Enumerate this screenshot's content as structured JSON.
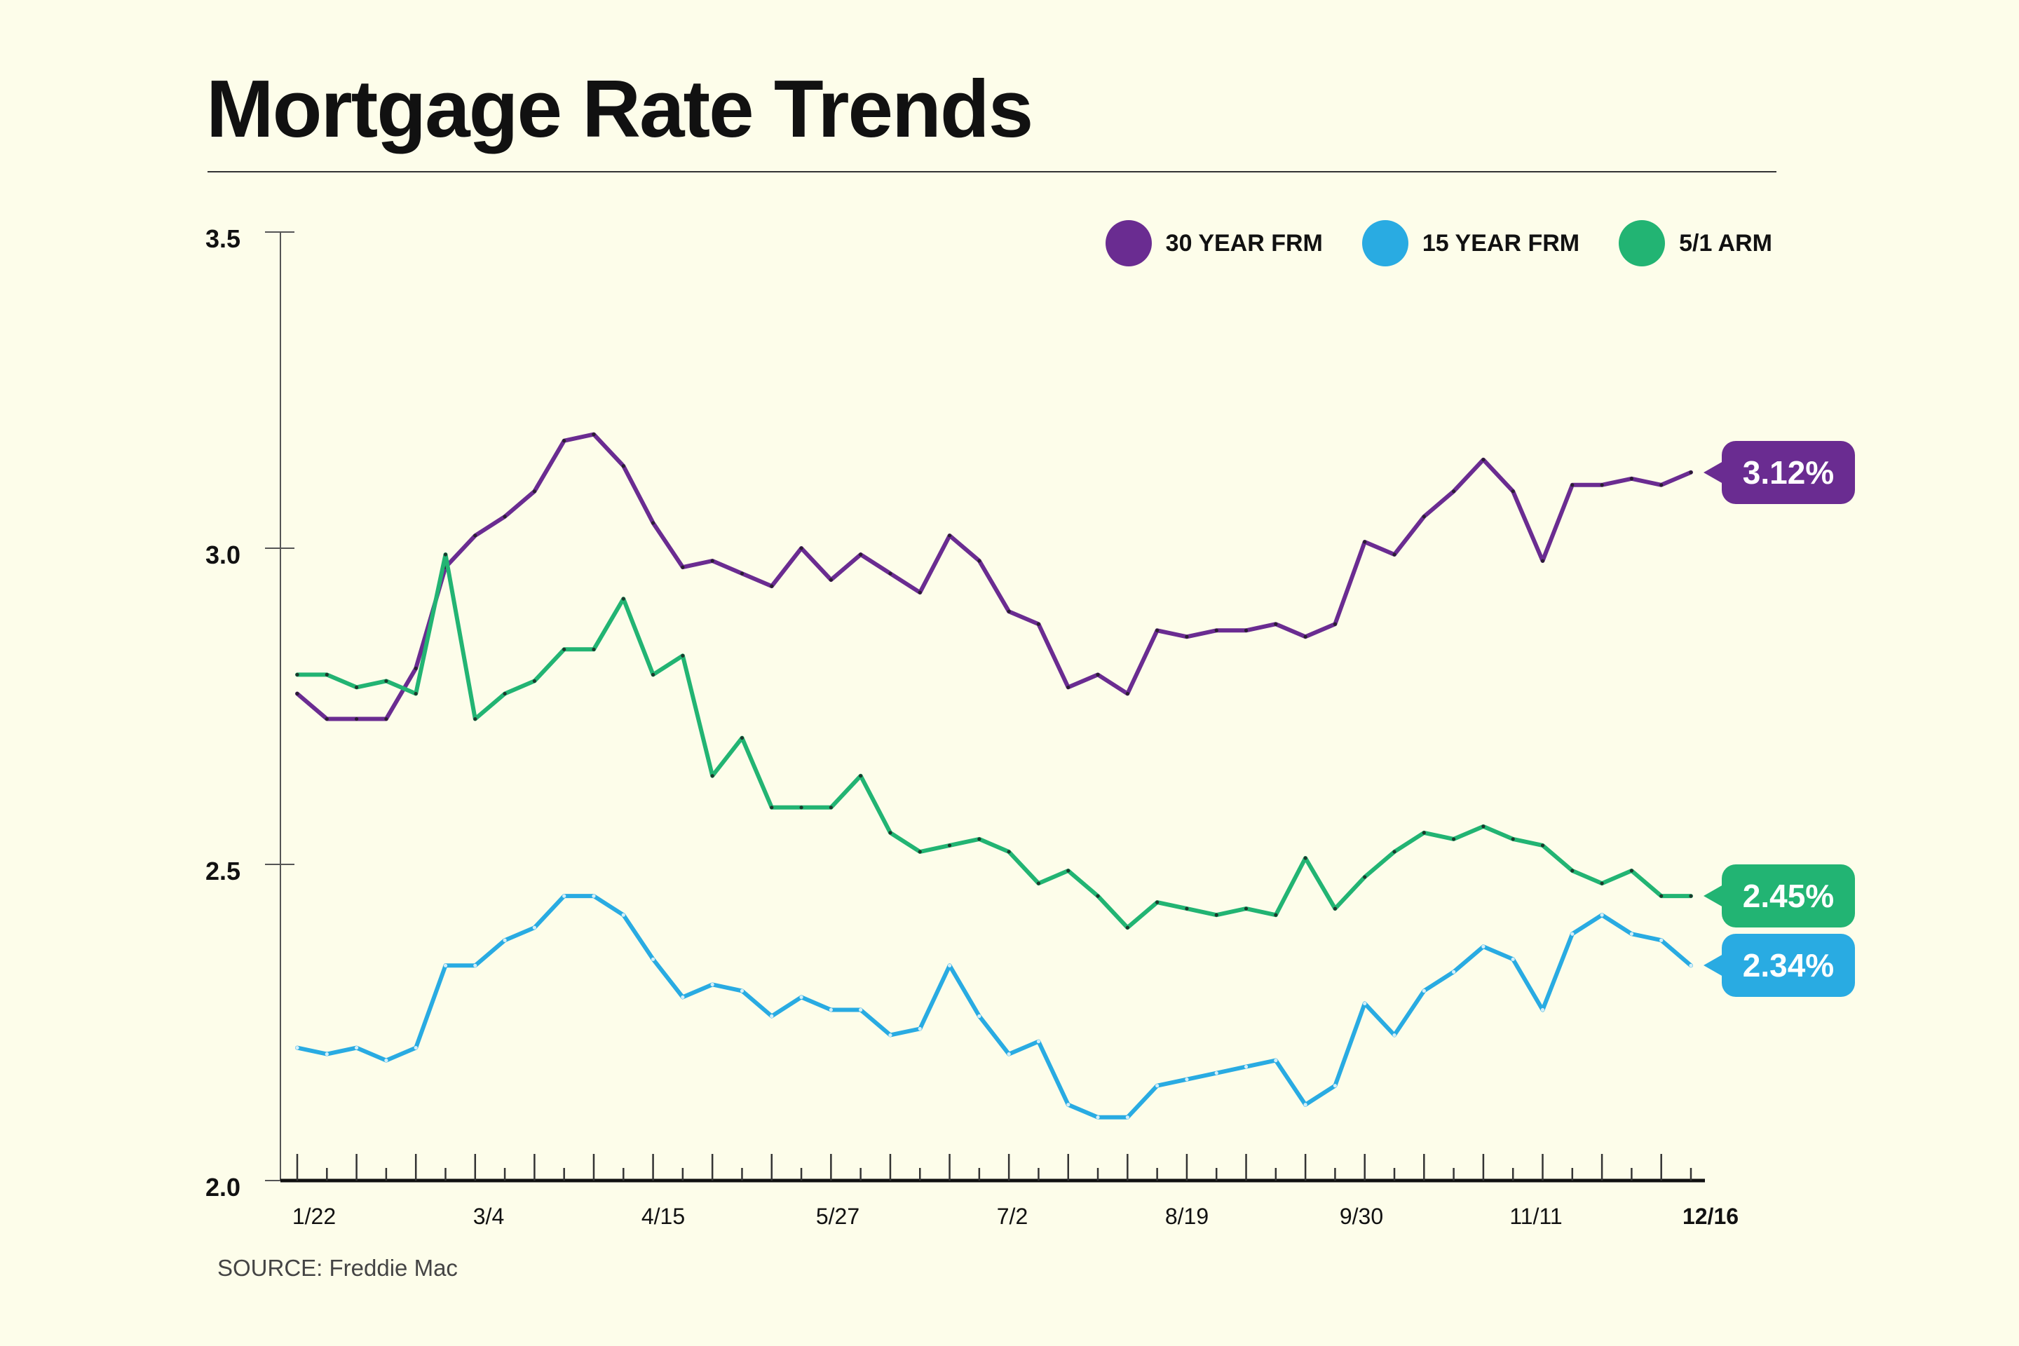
{
  "title": "Mortgage Rate Trends",
  "source": "SOURCE: Freddie Mac",
  "chart_data": {
    "type": "line",
    "title": "Mortgage Rate Trends",
    "ylim": [
      2.0,
      3.5
    ],
    "yticks": [
      "2.0",
      "2.5",
      "3.0",
      "3.5"
    ],
    "x_tick_labels": [
      "1/22",
      "3/4",
      "4/15",
      "5/27",
      "7/2",
      "8/19",
      "9/30",
      "11/11",
      "12/16"
    ],
    "legend_position": "top-right",
    "grid": false,
    "series": [
      {
        "name": "30 YEAR FRM",
        "color": "#6a2c91",
        "end_label": "3.12%",
        "values": [
          2.77,
          2.73,
          2.73,
          2.73,
          2.81,
          2.97,
          3.02,
          3.05,
          3.09,
          3.17,
          3.18,
          3.13,
          3.04,
          2.97,
          2.98,
          2.96,
          2.94,
          3.0,
          2.95,
          2.99,
          2.96,
          2.93,
          3.02,
          2.98,
          2.9,
          2.88,
          2.78,
          2.8,
          2.77,
          2.87,
          2.86,
          2.87,
          2.87,
          2.88,
          2.86,
          2.88,
          3.01,
          2.99,
          3.05,
          3.09,
          3.14,
          3.09,
          2.98,
          3.1,
          3.1,
          3.11,
          3.1,
          3.12
        ]
      },
      {
        "name": "15 YEAR FRM",
        "color": "#29abe2",
        "end_label": "2.34%",
        "values": [
          2.21,
          2.2,
          2.21,
          2.19,
          2.21,
          2.34,
          2.34,
          2.38,
          2.4,
          2.45,
          2.45,
          2.42,
          2.35,
          2.29,
          2.31,
          2.3,
          2.26,
          2.29,
          2.27,
          2.27,
          2.23,
          2.24,
          2.34,
          2.26,
          2.2,
          2.22,
          2.12,
          2.1,
          2.1,
          2.15,
          2.16,
          2.17,
          2.18,
          2.19,
          2.12,
          2.15,
          2.28,
          2.23,
          2.3,
          2.33,
          2.37,
          2.35,
          2.27,
          2.39,
          2.42,
          2.39,
          2.38,
          2.34
        ]
      },
      {
        "name": "5/1 ARM",
        "color": "#22b473",
        "end_label": "2.45%",
        "values": [
          2.8,
          2.8,
          2.78,
          2.79,
          2.77,
          2.99,
          2.73,
          2.77,
          2.79,
          2.84,
          2.84,
          2.92,
          2.8,
          2.83,
          2.64,
          2.7,
          2.59,
          2.59,
          2.59,
          2.64,
          2.55,
          2.52,
          2.53,
          2.54,
          2.52,
          2.47,
          2.49,
          2.45,
          2.4,
          2.44,
          2.43,
          2.42,
          2.43,
          2.42,
          2.51,
          2.43,
          2.48,
          2.52,
          2.55,
          2.54,
          2.56,
          2.54,
          2.53,
          2.49,
          2.47,
          2.49,
          2.45,
          2.45
        ]
      }
    ]
  }
}
